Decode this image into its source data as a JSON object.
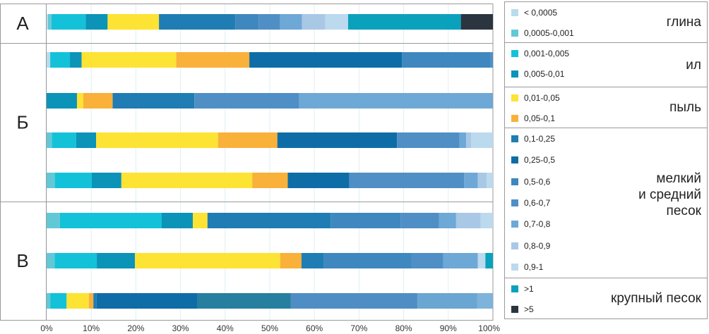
{
  "chart_data": {
    "type": "bar",
    "orientation": "horizontal",
    "stacked": true,
    "xlim": [
      0,
      100
    ],
    "x_tick_labels": [
      "0%",
      "10%",
      "20%",
      "30%",
      "40%",
      "50%",
      "60%",
      "70%",
      "80%",
      "90%",
      "100%"
    ],
    "grid": true,
    "groups": [
      {
        "label": "А",
        "rows": [
          0
        ]
      },
      {
        "label": "Б",
        "rows": [
          1,
          2,
          3,
          4
        ]
      },
      {
        "label": "В",
        "rows": [
          5,
          6,
          7
        ]
      }
    ],
    "series": [
      {
        "name": "< 0,0005",
        "color": "#b8dcec",
        "values": [
          0.3,
          0.8,
          0,
          0,
          0,
          0,
          0,
          0
        ]
      },
      {
        "name": "0,0005-0,001",
        "color": "#63c8d6",
        "values": [
          0.8,
          0,
          0,
          1.2,
          1.8,
          2.8,
          1.8,
          0.8
        ]
      },
      {
        "name": "0,001-0,005",
        "color": "#13c2d8",
        "values": [
          7.8,
          4.4,
          0,
          5.4,
          8.1,
          21.6,
          9.5,
          3.6
        ]
      },
      {
        "name": "0,005-0,01",
        "color": "#0b93b8",
        "values": [
          5.0,
          2.6,
          6.8,
          4.5,
          6.5,
          6.6,
          8.6,
          0
        ]
      },
      {
        "name": "0,01-0,05",
        "color": "#fde333",
        "values": [
          11.7,
          21.1,
          1.4,
          27.3,
          28.7,
          3.1,
          32.7,
          4.9
        ]
      },
      {
        "name": "0,05-0,1",
        "color": "#f9b13a",
        "values": [
          0,
          16.3,
          6.6,
          13.3,
          7.8,
          0,
          4.8,
          1.0
        ]
      },
      {
        "name": "0,1-0,25",
        "color": "#1f7db4",
        "values": [
          17.4,
          0,
          18.3,
          0,
          0,
          26.1,
          5.0,
          0.7
        ]
      },
      {
        "name": "0,25-0,5",
        "color": "#0e6da6",
        "values": [
          0,
          34.0,
          0,
          26.8,
          13.5,
          0,
          0,
          22.2
        ]
      },
      {
        "name": "0,5-0,6",
        "color": "#3e88bf",
        "values": [
          5.3,
          19.8,
          0,
          0,
          0,
          14.9,
          19.8,
          0
        ]
      },
      {
        "name": "0,6-0,7",
        "color": "#4f8fc5",
        "values": [
          4.9,
          0.5,
          23.5,
          14.0,
          25.2,
          8.1,
          7.1,
          0
        ]
      },
      {
        "name": "0,7-0,8",
        "color": "#6ea8d6",
        "values": [
          5.0,
          0,
          43.4,
          1.5,
          3.0,
          3.6,
          7.8,
          0
        ]
      },
      {
        "name": "0,8-0,9",
        "color": "#a8c8e6",
        "values": [
          5.3,
          0,
          0,
          1.1,
          1.9,
          5.2,
          0,
          0
        ]
      },
      {
        "name": "0,9-1",
        "color": "#bcdaee",
        "values": [
          5.2,
          0,
          0,
          4.9,
          1.4,
          2.6,
          1.7,
          0
        ]
      },
      {
        "name": ">1",
        "color": "#0aa1bd",
        "values": [
          25.7,
          0,
          0,
          0,
          0,
          0,
          1.7,
          0
        ]
      },
      {
        "name": ">5",
        "color": "#2a3540",
        "values": [
          7.3,
          0,
          0,
          0,
          0,
          0,
          0,
          0
        ]
      }
    ],
    "extra_segments_note": "",
    "row_extras": [
      [],
      [],
      [
        {
          "after": 6,
          "value": 0,
          "color": "#1b6a96"
        }
      ],
      [],
      [],
      [],
      [],
      [
        {
          "color": "#277f9f",
          "value": 20.6
        },
        {
          "color": "#4f8ec4",
          "value": 27.9
        },
        {
          "color": "#6aa6d2",
          "value": 13.1
        },
        {
          "color": "#7eb3da",
          "value": 3.5
        }
      ]
    ],
    "legend": [
      {
        "title": "глина",
        "items": [
          0,
          1
        ]
      },
      {
        "title": "ил",
        "items": [
          2,
          3
        ]
      },
      {
        "title": "пыль",
        "items": [
          4,
          5
        ]
      },
      {
        "title": "мелкий\nи средний\nпесок",
        "items": [
          6,
          7,
          8,
          9,
          10,
          11,
          12
        ]
      },
      {
        "title": "крупный песок",
        "items": [
          13,
          14
        ]
      }
    ]
  }
}
